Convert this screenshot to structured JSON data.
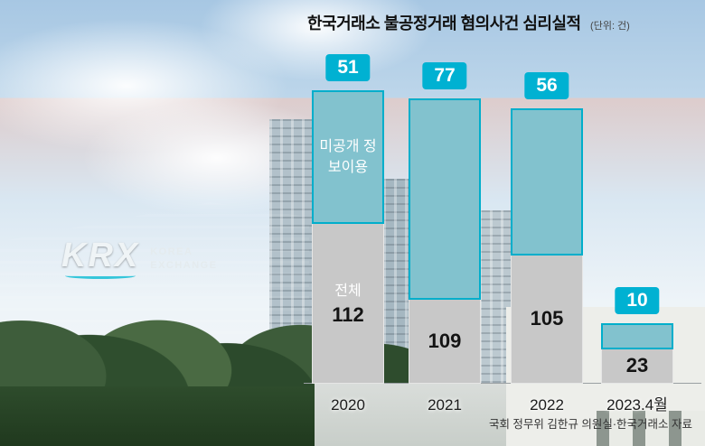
{
  "chart": {
    "title": "한국거래소 불공정거래 혐의사건 심리실적",
    "unit": "(단위: 건)",
    "source": "국회 정무위 김한규 의원실·한국거래소 자료"
  },
  "chart_data": {
    "type": "bar",
    "stacked": true,
    "title": "한국거래소 불공정거래 혐의사건 심리실적",
    "unit_label": "(단위: 건)",
    "categories": [
      "2020",
      "2021",
      "2022",
      "2023.4월"
    ],
    "series": [
      {
        "name": "전체",
        "values": [
          112,
          109,
          105,
          23
        ]
      },
      {
        "name": "미공개 정보이용",
        "values": [
          51,
          77,
          56,
          10
        ]
      }
    ],
    "value_badges": [
      51,
      77,
      56,
      10
    ],
    "legend_position": "in-bar",
    "grid": false,
    "colors": {
      "total_fill": "#c8c8c8",
      "undisclosed_fill": "#82c2ce",
      "undisclosed_border": "#00aecb",
      "badge": "#00b1d2"
    },
    "source": "국회 정무위 김한규 의원실·한국거래소 자료"
  },
  "background": {
    "krx_logo": "KRX",
    "krx_sub1": "KOREA",
    "krx_sub2": "EXCHANGE"
  }
}
